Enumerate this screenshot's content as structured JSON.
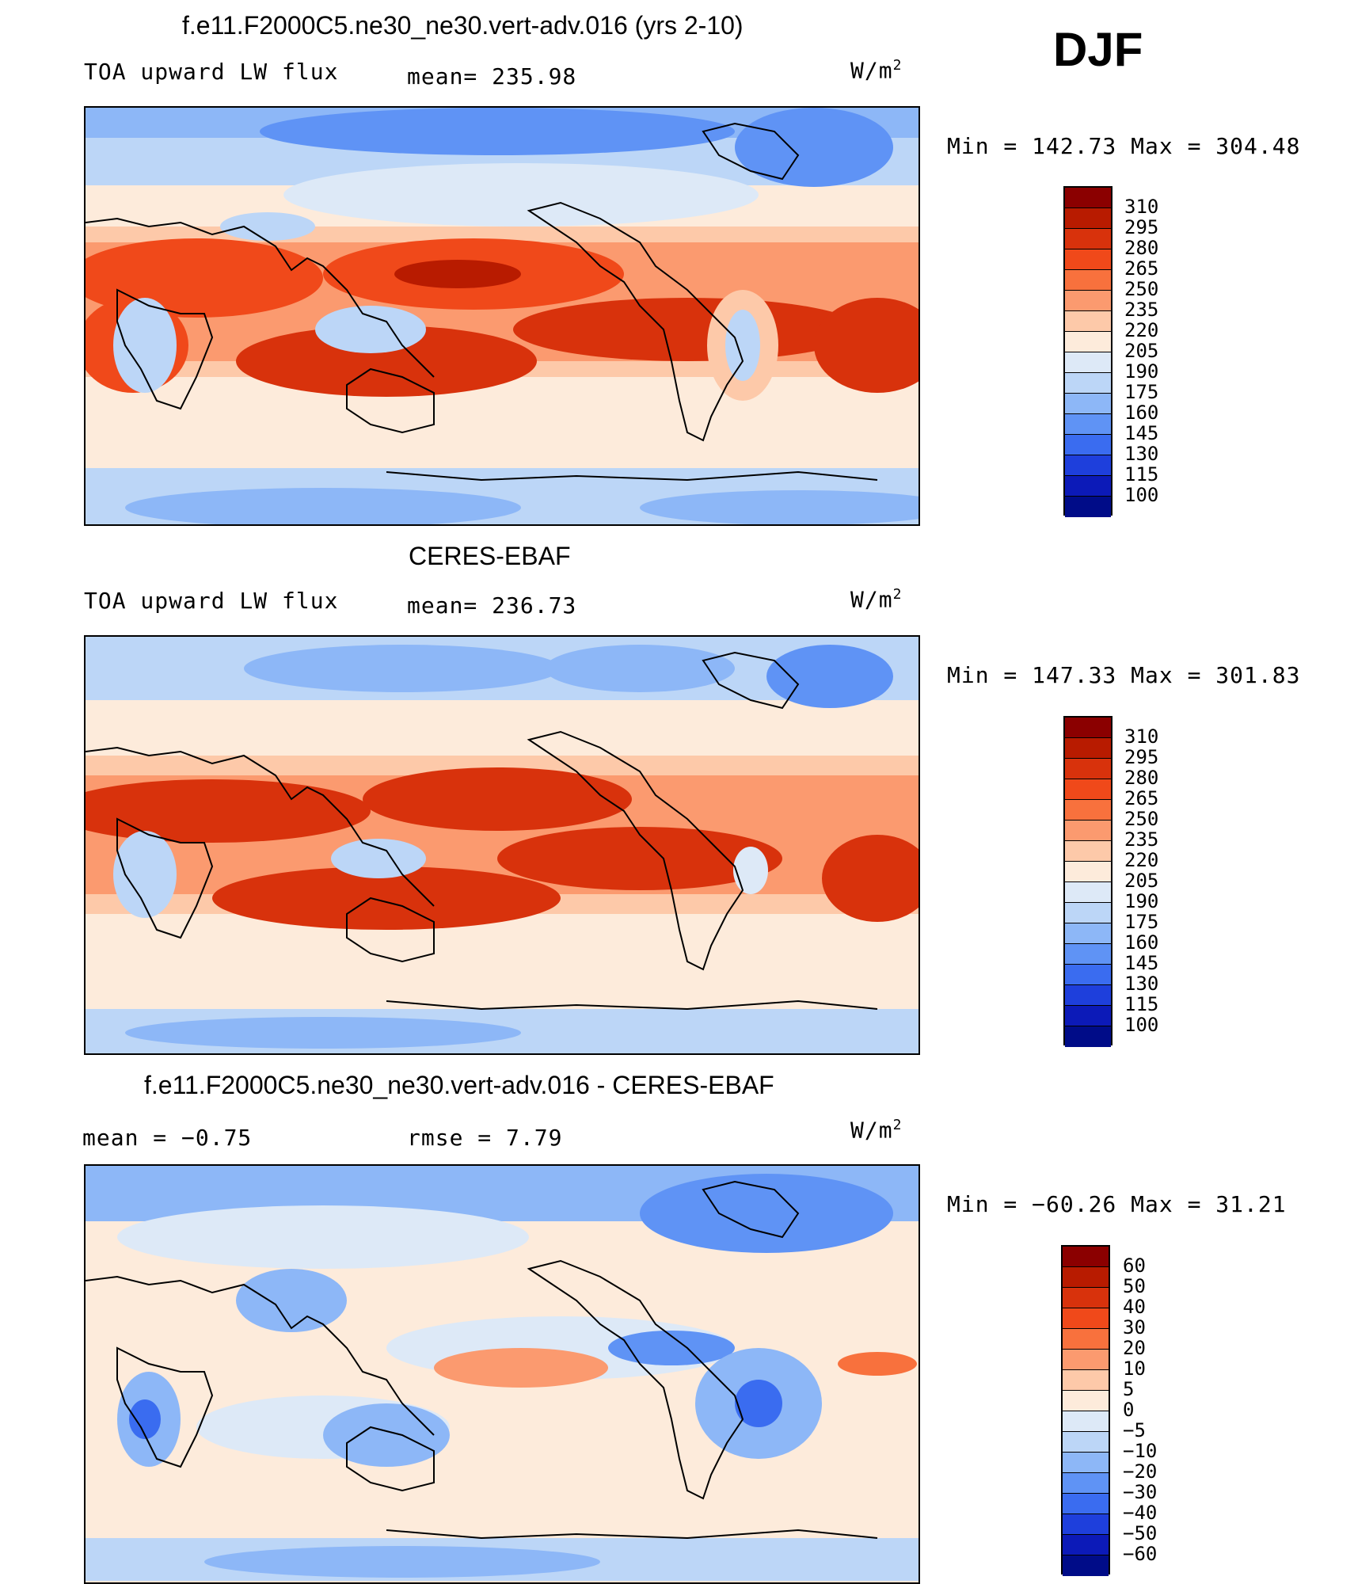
{
  "header": {
    "season": "DJF"
  },
  "panels": [
    {
      "title": "f.e11.F2000C5.ne30_ne30.vert-adv.016 (yrs 2-10)",
      "left_label": "TOA upward LW flux",
      "center_label": "mean=  235.98",
      "units": "W/m",
      "units_sup": "2",
      "stats": "Min  =  142.73  Max  =  304.48",
      "colorbar": {
        "labels": [
          "310",
          "295",
          "280",
          "265",
          "250",
          "235",
          "220",
          "205",
          "190",
          "175",
          "160",
          "145",
          "130",
          "115",
          "100"
        ],
        "colors": [
          "#8b0000",
          "#b81b00",
          "#d8320c",
          "#f0491a",
          "#f8713d",
          "#fb9a6f",
          "#fdc9a9",
          "#fdebdb",
          "#dde9f7",
          "#bcd6f7",
          "#8db7f7",
          "#5f93f5",
          "#3a6cf0",
          "#1e3fdc",
          "#0c1ab8",
          "#000c88"
        ]
      }
    },
    {
      "title": "CERES-EBAF",
      "left_label": "TOA upward LW flux",
      "center_label": "mean=  236.73",
      "units": "W/m",
      "units_sup": "2",
      "stats": "Min  =  147.33  Max  =  301.83",
      "colorbar": {
        "labels": [
          "310",
          "295",
          "280",
          "265",
          "250",
          "235",
          "220",
          "205",
          "190",
          "175",
          "160",
          "145",
          "130",
          "115",
          "100"
        ],
        "colors": [
          "#8b0000",
          "#b81b00",
          "#d8320c",
          "#f0491a",
          "#f8713d",
          "#fb9a6f",
          "#fdc9a9",
          "#fdebdb",
          "#dde9f7",
          "#bcd6f7",
          "#8db7f7",
          "#5f93f5",
          "#3a6cf0",
          "#1e3fdc",
          "#0c1ab8",
          "#000c88"
        ]
      }
    },
    {
      "title": "f.e11.F2000C5.ne30_ne30.vert-adv.016 - CERES-EBAF",
      "left_label": "mean  =    −0.75",
      "center_label": "rmse  =     7.79",
      "units": "W/m",
      "units_sup": "2",
      "stats": "Min  =  −60.26  Max  =    31.21",
      "colorbar": {
        "labels": [
          "60",
          "50",
          "40",
          "30",
          "20",
          "10",
          "5",
          "0",
          "−5",
          "−10",
          "−20",
          "−30",
          "−40",
          "−50",
          "−60"
        ],
        "colors": [
          "#8b0000",
          "#b81b00",
          "#d8320c",
          "#f0491a",
          "#f8713d",
          "#fb9a6f",
          "#fdc9a9",
          "#fdebdb",
          "#dde9f7",
          "#bcd6f7",
          "#8db7f7",
          "#5f93f5",
          "#3a6cf0",
          "#1e3fdc",
          "#0c1ab8",
          "#000c88"
        ]
      }
    }
  ]
}
